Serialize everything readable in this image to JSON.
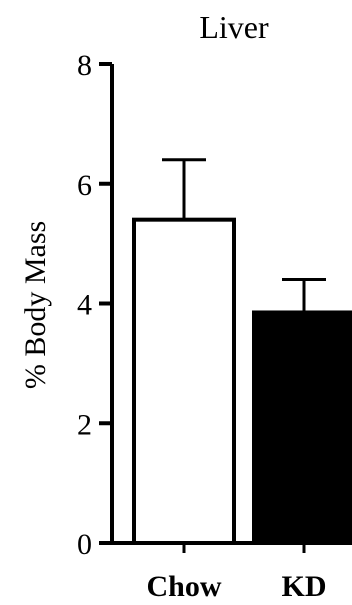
{
  "chart_data": {
    "type": "bar",
    "title": "Liver",
    "xlabel": "",
    "ylabel": "% Body Mass",
    "ylim": [
      0,
      8
    ],
    "yticks": [
      0,
      2,
      4,
      6,
      8
    ],
    "categories": [
      "Chow",
      "KD"
    ],
    "values": [
      5.4,
      3.85
    ],
    "errors": [
      1.0,
      0.55
    ],
    "bar_colors": [
      "#ffffff",
      "#000000"
    ],
    "grid": false
  }
}
